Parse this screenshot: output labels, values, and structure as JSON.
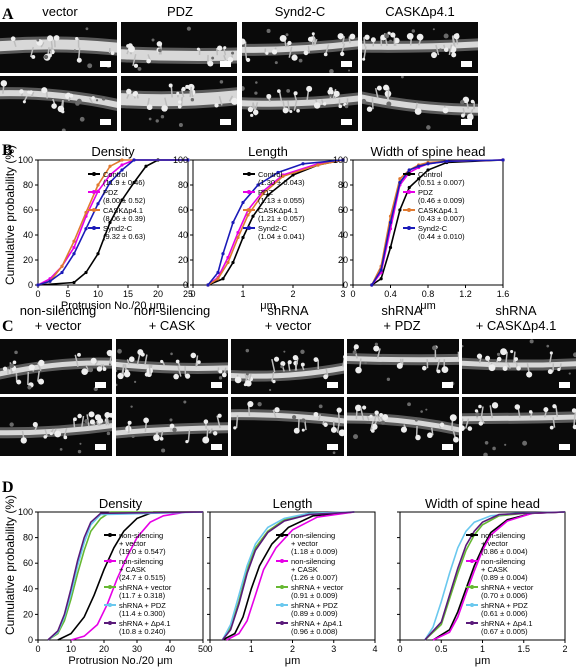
{
  "panels": {
    "A": {
      "letter": "A",
      "columns": [
        "vector",
        "PDZ",
        "Synd2-C",
        "CASKΔp4.1"
      ]
    },
    "B": {
      "letter": "B",
      "ylabel": "Cumulative probability (%)",
      "plots": [
        {
          "title": "Density",
          "xlabel": "Protrusion No./20 μm",
          "xticks": [
            "0",
            "5",
            "10",
            "15",
            "20",
            "25"
          ],
          "yticks": [
            "0",
            "20",
            "40",
            "60",
            "80",
            "100"
          ],
          "xlim": [
            0,
            25
          ],
          "legend": [
            {
              "name": "Control",
              "stat": "(11.9 ± 0.46)"
            },
            {
              "name": "PDZ",
              "stat": "(8.00 ± 0.52)"
            },
            {
              "name": "CASKΔp4.1",
              "stat": "(8.06 ± 0.39)"
            },
            {
              "name": "Synd2-C",
              "stat": "(9.32 ± 0.63)"
            }
          ]
        },
        {
          "title": "Length",
          "xlabel": "μm",
          "xticks": [
            "0",
            "1",
            "2",
            "3"
          ],
          "xlim": [
            0,
            3
          ],
          "legend": [
            {
              "name": "Control",
              "stat": "(1.30 ± 0.043)"
            },
            {
              "name": "PDZ",
              "stat": "(1.13 ± 0.055)"
            },
            {
              "name": "CASKΔp4.1",
              "stat": "(1.21 ± 0.057)"
            },
            {
              "name": "Synd2-C",
              "stat": "(1.04 ± 0.041)"
            }
          ]
        },
        {
          "title": "Width of spine head",
          "xlabel": "μm",
          "xticks": [
            "0",
            "0.4",
            "0.8",
            "1.2",
            "1.6"
          ],
          "xlim": [
            0,
            1.6
          ],
          "legend": [
            {
              "name": "Control",
              "stat": "(0.51 ± 0.007)"
            },
            {
              "name": "PDZ",
              "stat": "(0.46 ± 0.009)"
            },
            {
              "name": "CASKΔp4.1",
              "stat": "(0.43 ± 0.007)"
            },
            {
              "name": "Synd2-C",
              "stat": "(0.44 ± 0.010)"
            }
          ]
        }
      ]
    },
    "C": {
      "letter": "C",
      "columns": [
        [
          "non-silencing",
          "+ vector"
        ],
        [
          "non-silencing",
          "+ CASK"
        ],
        [
          "shRNA",
          "+ vector"
        ],
        [
          "shRNA",
          "+ PDZ"
        ],
        [
          "shRNA",
          "+ CASKΔp4.1"
        ]
      ]
    },
    "D": {
      "letter": "D",
      "ylabel": "Cumulative probability (%)",
      "plots": [
        {
          "title": "Density",
          "xlabel": "Protrusion No./20 μm",
          "xticks": [
            "0",
            "10",
            "20",
            "30",
            "40",
            "50"
          ],
          "yticks": [
            "0",
            "20",
            "40",
            "60",
            "80",
            "100"
          ],
          "xlim": [
            0,
            50
          ],
          "legend": [
            {
              "name": "non-silencing",
              "name2": "+ vector",
              "stat": "(19.0 ± 0.547)"
            },
            {
              "name": "non-silencing",
              "name2": "+ CASK",
              "stat": "(24.7 ± 0.515)"
            },
            {
              "name": "shRNA + vector",
              "name2": "",
              "stat": "(11.7 ± 0.318)"
            },
            {
              "name": "shRNA + PDZ",
              "name2": "",
              "stat": "(11.4 ± 0.300)"
            },
            {
              "name": "shRNA + Δp4.1",
              "name2": "",
              "stat": "(10.8 ± 0.240)"
            }
          ]
        },
        {
          "title": "Length",
          "xlabel": "μm",
          "xticks": [
            "0",
            "1",
            "2",
            "3",
            "4"
          ],
          "xlim": [
            0,
            4
          ],
          "legend": [
            {
              "name": "non-silencing",
              "name2": "+ vector",
              "stat": "(1.18 ± 0.009)"
            },
            {
              "name": "non-silencing",
              "name2": "+ CASK",
              "stat": "(1.26 ± 0.007)"
            },
            {
              "name": "shRNA + vector",
              "name2": "",
              "stat": "(0.91 ± 0.009)"
            },
            {
              "name": "shRNA + PDZ",
              "name2": "",
              "stat": "(0.89 ± 0.009)"
            },
            {
              "name": "shRNA + Δp4.1",
              "name2": "",
              "stat": "(0.96 ± 0.008)"
            }
          ]
        },
        {
          "title": "Width of spine head",
          "xlabel": "μm",
          "xticks": [
            "0",
            "0.5",
            "1",
            "1.5",
            "2"
          ],
          "xlim": [
            0,
            2
          ],
          "legend": [
            {
              "name": "non-silencing",
              "name2": "+ vector",
              "stat": "(0.86 ± 0.004)"
            },
            {
              "name": "non-silencing",
              "name2": "+ CASK",
              "stat": "(0.89 ± 0.004)"
            },
            {
              "name": "shRNA + vector",
              "name2": "",
              "stat": "(0.70 ± 0.006)"
            },
            {
              "name": "shRNA + PDZ",
              "name2": "",
              "stat": "(0.61 ± 0.006)"
            },
            {
              "name": "shRNA + Δp4.1",
              "name2": "",
              "stat": "(0.67 ± 0.005)"
            }
          ]
        }
      ]
    }
  },
  "colors": {
    "black": "#000000",
    "magenta": "#e600e6",
    "orange": "#e07a30",
    "blue": "#1a1ab8",
    "green": "#66b832",
    "lightblue": "#6ac8ee",
    "purple": "#5a1a7a"
  },
  "chart_data": [
    {
      "type": "line",
      "panel": "B",
      "title": "Density",
      "xlabel": "Protrusion No./20 μm",
      "ylabel": "Cumulative probability (%)",
      "xlim": [
        0,
        25
      ],
      "ylim": [
        0,
        100
      ],
      "series": [
        {
          "name": "Control",
          "color": "black",
          "x": [
            0,
            6,
            8,
            10,
            12,
            14,
            16,
            18,
            20,
            25
          ],
          "y": [
            0,
            2,
            10,
            25,
            50,
            68,
            82,
            95,
            100,
            100
          ]
        },
        {
          "name": "PDZ",
          "color": "magenta",
          "x": [
            0,
            2,
            4,
            6,
            8,
            10,
            12,
            14,
            16,
            25
          ],
          "y": [
            0,
            5,
            15,
            30,
            55,
            75,
            88,
            96,
            100,
            100
          ]
        },
        {
          "name": "CASKΔp4.1",
          "color": "orange",
          "x": [
            0,
            2,
            4,
            6,
            8,
            10,
            12,
            14,
            25
          ],
          "y": [
            0,
            3,
            15,
            35,
            58,
            80,
            95,
            100,
            100
          ]
        },
        {
          "name": "Synd2-C",
          "color": "blue",
          "x": [
            0,
            2,
            4,
            6,
            8,
            10,
            12,
            14,
            16,
            25
          ],
          "y": [
            0,
            3,
            10,
            25,
            45,
            65,
            82,
            92,
            100,
            100
          ]
        }
      ]
    },
    {
      "type": "line",
      "panel": "B",
      "title": "Length",
      "xlabel": "μm",
      "xlim": [
        0,
        3
      ],
      "ylim": [
        0,
        100
      ],
      "series": [
        {
          "name": "Control",
          "color": "black",
          "x": [
            0.3,
            0.6,
            0.8,
            1.0,
            1.2,
            1.5,
            2.0,
            2.5,
            3.0
          ],
          "y": [
            0,
            5,
            18,
            38,
            55,
            72,
            88,
            96,
            100
          ]
        },
        {
          "name": "PDZ",
          "color": "magenta",
          "x": [
            0.3,
            0.5,
            0.7,
            0.9,
            1.1,
            1.4,
            1.8,
            2.5,
            3.0
          ],
          "y": [
            0,
            6,
            22,
            42,
            60,
            75,
            88,
            97,
            100
          ]
        },
        {
          "name": "CASKΔp4.1",
          "color": "orange",
          "x": [
            0.3,
            0.5,
            0.7,
            0.9,
            1.1,
            1.4,
            1.8,
            2.5,
            3.0
          ],
          "y": [
            0,
            5,
            18,
            38,
            56,
            73,
            87,
            96,
            100
          ]
        },
        {
          "name": "Synd2-C",
          "color": "blue",
          "x": [
            0.3,
            0.5,
            0.6,
            0.8,
            1.0,
            1.3,
            1.7,
            2.2,
            3.0
          ],
          "y": [
            0,
            10,
            25,
            50,
            66,
            80,
            90,
            97,
            100
          ]
        }
      ]
    },
    {
      "type": "line",
      "panel": "B",
      "title": "Width of spine head",
      "xlabel": "μm",
      "xlim": [
        0,
        1.6
      ],
      "ylim": [
        0,
        100
      ],
      "series": [
        {
          "name": "Control",
          "color": "black",
          "x": [
            0.2,
            0.3,
            0.4,
            0.5,
            0.6,
            0.7,
            0.8,
            1.0,
            1.6
          ],
          "y": [
            0,
            5,
            30,
            60,
            78,
            85,
            92,
            98,
            100
          ]
        },
        {
          "name": "PDZ",
          "color": "magenta",
          "x": [
            0.2,
            0.3,
            0.4,
            0.5,
            0.6,
            0.7,
            0.8,
            1.0,
            1.6
          ],
          "y": [
            0,
            10,
            45,
            80,
            90,
            94,
            97,
            99,
            100
          ]
        },
        {
          "name": "CASKΔp4.1",
          "color": "orange",
          "x": [
            0.2,
            0.3,
            0.4,
            0.5,
            0.6,
            0.7,
            0.8,
            1.0,
            1.6
          ],
          "y": [
            0,
            15,
            55,
            85,
            92,
            96,
            98,
            99,
            100
          ]
        },
        {
          "name": "Synd2-C",
          "color": "blue",
          "x": [
            0.2,
            0.3,
            0.4,
            0.5,
            0.6,
            0.7,
            0.8,
            1.0,
            1.6
          ],
          "y": [
            0,
            12,
            50,
            82,
            92,
            95,
            97,
            99,
            100
          ]
        }
      ]
    },
    {
      "type": "line",
      "panel": "D",
      "title": "Density",
      "xlabel": "Protrusion No./20 μm",
      "ylabel": "Cumulative probability (%)",
      "xlim": [
        0,
        50
      ],
      "ylim": [
        0,
        100
      ],
      "series": [
        {
          "name": "non-silencing + vector",
          "color": "black",
          "x": [
            6,
            10,
            14,
            17,
            20,
            23,
            26,
            30,
            35,
            50
          ],
          "y": [
            0,
            5,
            18,
            35,
            55,
            72,
            85,
            95,
            100,
            100
          ]
        },
        {
          "name": "non-silencing + CASK",
          "color": "magenta",
          "x": [
            10,
            14,
            18,
            21,
            24,
            27,
            30,
            34,
            38,
            45,
            50
          ],
          "y": [
            0,
            3,
            12,
            28,
            48,
            65,
            80,
            92,
            97,
            100,
            100
          ]
        },
        {
          "name": "shRNA + vector",
          "color": "green",
          "x": [
            3,
            6,
            8,
            10,
            12,
            14,
            16,
            19,
            22,
            50
          ],
          "y": [
            0,
            5,
            15,
            32,
            52,
            70,
            85,
            95,
            100,
            100
          ]
        },
        {
          "name": "shRNA + PDZ",
          "color": "lightblue",
          "x": [
            3,
            6,
            8,
            10,
            12,
            14,
            16,
            19,
            50
          ],
          "y": [
            0,
            6,
            18,
            36,
            58,
            76,
            90,
            98,
            100
          ]
        },
        {
          "name": "shRNA + Δp4.1",
          "color": "purple",
          "x": [
            3,
            6,
            8,
            10,
            12,
            14,
            16,
            19,
            50
          ],
          "y": [
            0,
            7,
            20,
            40,
            62,
            80,
            92,
            99,
            100
          ]
        }
      ]
    },
    {
      "type": "line",
      "panel": "D",
      "title": "Length",
      "xlabel": "μm",
      "xlim": [
        0,
        4
      ],
      "ylim": [
        0,
        100
      ],
      "series": [
        {
          "name": "non-silencing + vector",
          "color": "black",
          "x": [
            0.3,
            0.6,
            0.8,
            1.0,
            1.2,
            1.5,
            1.9,
            2.5,
            3.5
          ],
          "y": [
            0,
            5,
            18,
            40,
            58,
            75,
            88,
            97,
            100
          ]
        },
        {
          "name": "non-silencing + CASK",
          "color": "magenta",
          "x": [
            0.4,
            0.7,
            0.9,
            1.1,
            1.3,
            1.6,
            2.0,
            2.6,
            3.5
          ],
          "y": [
            0,
            5,
            15,
            35,
            55,
            72,
            86,
            96,
            100
          ]
        },
        {
          "name": "shRNA + vector",
          "color": "green",
          "x": [
            0.3,
            0.5,
            0.7,
            0.9,
            1.1,
            1.4,
            1.8,
            2.4,
            3.5
          ],
          "y": [
            0,
            10,
            30,
            55,
            72,
            85,
            94,
            99,
            100
          ]
        },
        {
          "name": "shRNA + PDZ",
          "color": "lightblue",
          "x": [
            0.3,
            0.5,
            0.7,
            0.9,
            1.1,
            1.4,
            1.8,
            2.4,
            3.5
          ],
          "y": [
            0,
            12,
            35,
            58,
            75,
            88,
            95,
            99,
            100
          ]
        },
        {
          "name": "shRNA + Δp4.1",
          "color": "purple",
          "x": [
            0.3,
            0.5,
            0.7,
            0.9,
            1.1,
            1.4,
            1.8,
            2.4,
            3.5
          ],
          "y": [
            0,
            8,
            28,
            52,
            70,
            84,
            93,
            98,
            100
          ]
        }
      ]
    },
    {
      "type": "line",
      "panel": "D",
      "title": "Width of spine head",
      "xlabel": "μm",
      "xlim": [
        0,
        2
      ],
      "ylim": [
        0,
        100
      ],
      "series": [
        {
          "name": "non-silencing + vector",
          "color": "black",
          "x": [
            0.4,
            0.6,
            0.7,
            0.8,
            0.9,
            1.0,
            1.1,
            1.3,
            1.6,
            2.0
          ],
          "y": [
            0,
            8,
            22,
            40,
            58,
            72,
            84,
            94,
            99,
            100
          ]
        },
        {
          "name": "non-silencing + CASK",
          "color": "magenta",
          "x": [
            0.4,
            0.6,
            0.7,
            0.8,
            0.9,
            1.0,
            1.1,
            1.3,
            1.6,
            2.0
          ],
          "y": [
            0,
            6,
            18,
            36,
            54,
            70,
            82,
            93,
            99,
            100
          ]
        },
        {
          "name": "shRNA + vector",
          "color": "green",
          "x": [
            0.3,
            0.5,
            0.6,
            0.7,
            0.8,
            0.9,
            1.0,
            1.2,
            1.5,
            2.0
          ],
          "y": [
            0,
            12,
            32,
            52,
            70,
            82,
            90,
            97,
            99,
            100
          ]
        },
        {
          "name": "shRNA + PDZ",
          "color": "lightblue",
          "x": [
            0.3,
            0.4,
            0.5,
            0.6,
            0.7,
            0.8,
            0.9,
            1.1,
            1.4,
            2.0
          ],
          "y": [
            0,
            10,
            30,
            52,
            72,
            85,
            92,
            97,
            99,
            100
          ]
        },
        {
          "name": "shRNA + Δp4.1",
          "color": "purple",
          "x": [
            0.3,
            0.5,
            0.6,
            0.7,
            0.8,
            0.9,
            1.0,
            1.2,
            1.5,
            2.0
          ],
          "y": [
            0,
            14,
            35,
            56,
            74,
            85,
            92,
            98,
            99,
            100
          ]
        }
      ]
    }
  ]
}
